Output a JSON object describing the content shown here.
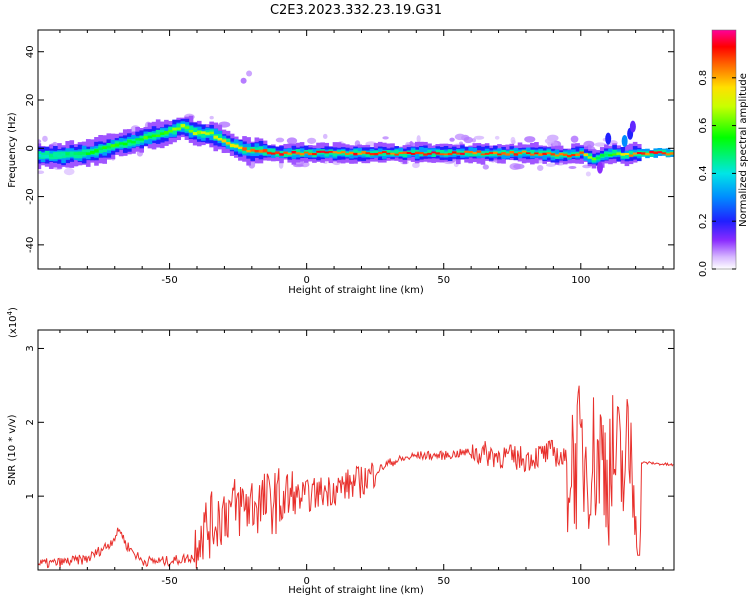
{
  "title": "C2E3.2023.332.23.19.G31",
  "chart_data": [
    {
      "type": "heatmap",
      "xlabel": "Height of straight line (km)",
      "ylabel": "Frequency (Hz)",
      "xlim": [
        -98,
        134
      ],
      "ylim": [
        -50,
        49
      ],
      "x_ticks": [
        -50,
        0,
        50,
        100
      ],
      "y_ticks": [
        -40,
        -20,
        0,
        20,
        40
      ],
      "ridge": {
        "x": [
          -98,
          -90,
          -80,
          -70,
          -60,
          -50,
          -45,
          -40,
          -35,
          -30,
          -25,
          -20,
          -10,
          0,
          10,
          20,
          40,
          60,
          80,
          95,
          100,
          105,
          108,
          112,
          116,
          120,
          125,
          134
        ],
        "freq": [
          -3,
          -3,
          -2,
          1,
          4,
          7,
          9,
          6,
          6,
          3,
          0,
          -1,
          -2,
          -2,
          -2,
          -2,
          -2,
          -2,
          -2,
          -3,
          -2,
          -5,
          -3,
          -2,
          -3,
          -2,
          -2,
          -2
        ],
        "amplitude": [
          0.45,
          0.5,
          0.55,
          0.6,
          0.6,
          0.65,
          0.7,
          0.75,
          0.75,
          0.8,
          0.85,
          0.9,
          0.95,
          0.95,
          0.95,
          0.95,
          0.95,
          0.95,
          0.95,
          0.95,
          0.9,
          0.6,
          0.5,
          0.6,
          0.8,
          0.95,
          0.95,
          0.95
        ]
      },
      "colorbar": {
        "label": "Normalized spectral amplitude",
        "ticks": [
          "0.0",
          "0.2",
          "0.4",
          "0.6",
          "0.8"
        ],
        "range": [
          0,
          1
        ]
      }
    },
    {
      "type": "line",
      "xlabel": "Height of straight line (km)",
      "ylabel": "SNR (10 * v/v)",
      "multiplier_label": "(x10",
      "multiplier_exp": "4",
      "multiplier_close": ")",
      "xlim": [
        -98,
        134
      ],
      "ylim": [
        0,
        3.25
      ],
      "x_ticks": [
        -50,
        0,
        50,
        100
      ],
      "y_ticks": [
        1,
        2,
        3
      ],
      "color": "#e8302c",
      "series": [
        {
          "x": [
            -98,
            -90,
            -80,
            -72,
            -68,
            -66,
            -60,
            -50,
            -45,
            -41,
            -40,
            -35,
            -30,
            -25,
            -20,
            -15,
            -10,
            0,
            10,
            20,
            30,
            40,
            50,
            60,
            70,
            80,
            90,
            95,
            100,
            105,
            108,
            110,
            112,
            115,
            118,
            120,
            122,
            125,
            134
          ],
          "y": [
            0.08,
            0.1,
            0.15,
            0.35,
            0.55,
            0.35,
            0.12,
            0.12,
            0.15,
            0.18,
            0.5,
            0.6,
            0.8,
            0.85,
            0.9,
            0.9,
            0.95,
            1.0,
            1.1,
            1.2,
            1.45,
            1.55,
            1.55,
            1.6,
            1.55,
            1.5,
            1.6,
            1.45,
            1.55,
            1.5,
            1.6,
            1.3,
            1.5,
            1.3,
            1.6,
            1.2,
            1.45,
            1.45,
            1.42
          ]
        }
      ]
    }
  ]
}
